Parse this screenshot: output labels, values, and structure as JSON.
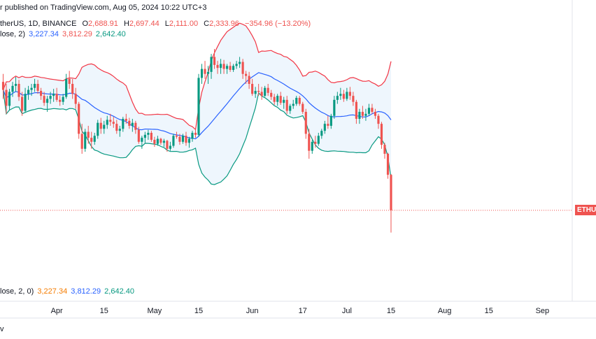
{
  "header": {
    "published": "r published on TradingView.com, Aug 05, 2024 10:22 UTC+3"
  },
  "legend": {
    "symbol": "therUS, 1D, BINANCE",
    "o_label": "O",
    "o_value": "2,688.91",
    "h_label": "H",
    "h_value": "2,697.44",
    "l_label": "L",
    "l_value": "2,111.00",
    "c_label": "C",
    "c_value": "2,333.96",
    "change": "−354.96 (−13.20%)"
  },
  "indicator": {
    "name": "lose, 2)",
    "basis": "3,227.34",
    "upper": "3,812.29",
    "lower": "2,642.40"
  },
  "pane2": {
    "name": "lose, 2, 0)",
    "basis": "3,227.34",
    "upper": "3,812.29",
    "lower": "2,642.40"
  },
  "price_tag": "ETHUS",
  "bottom_label": "v",
  "colors": {
    "up": "#089981",
    "down": "#ef5350",
    "basis": "#2962ff",
    "upper": "#f23645",
    "lower": "#089981",
    "fill": "#e3f0fb",
    "price_line": "#ef5350"
  },
  "chart_data": {
    "type": "candlestick",
    "x_labels": [
      {
        "date": "2024-03-31",
        "label": "Apr"
      },
      {
        "date": "2024-04-15",
        "label": "15"
      },
      {
        "date": "2024-05-01",
        "label": "May"
      },
      {
        "date": "2024-05-15",
        "label": "15"
      },
      {
        "date": "2024-06-01",
        "label": "Jun"
      },
      {
        "date": "2024-06-17",
        "label": "17"
      },
      {
        "date": "2024-07-01",
        "label": "Jul"
      },
      {
        "date": "2024-07-15",
        "label": "15"
      },
      {
        "date": "2024-08-01",
        "label": "Aug"
      },
      {
        "date": "2024-08-15",
        "label": "15"
      },
      {
        "date": "2024-09-01",
        "label": "Sep"
      }
    ],
    "x_range": [
      "2024-03-13",
      "2024-09-18"
    ],
    "ylim": [
      1500,
      4300
    ],
    "start_date": "2024-03-14",
    "candles": [
      [
        3620,
        3700,
        3450,
        3540
      ],
      [
        3540,
        3600,
        3300,
        3380
      ],
      [
        3380,
        3550,
        3340,
        3520
      ],
      [
        3520,
        3620,
        3470,
        3580
      ],
      [
        3580,
        3670,
        3520,
        3600
      ],
      [
        3600,
        3640,
        3430,
        3470
      ],
      [
        3470,
        3520,
        3280,
        3330
      ],
      [
        3330,
        3560,
        3310,
        3500
      ],
      [
        3500,
        3580,
        3440,
        3540
      ],
      [
        3540,
        3600,
        3480,
        3560
      ],
      [
        3560,
        3650,
        3520,
        3600
      ],
      [
        3600,
        3640,
        3500,
        3530
      ],
      [
        3530,
        3560,
        3440,
        3480
      ],
      [
        3480,
        3520,
        3380,
        3410
      ],
      [
        3410,
        3480,
        3320,
        3450
      ],
      [
        3450,
        3520,
        3400,
        3480
      ],
      [
        3480,
        3550,
        3420,
        3500
      ],
      [
        3500,
        3560,
        3420,
        3440
      ],
      [
        3440,
        3480,
        3380,
        3420
      ],
      [
        3420,
        3500,
        3390,
        3470
      ],
      [
        3470,
        3700,
        3450,
        3650
      ],
      [
        3650,
        3730,
        3550,
        3600
      ],
      [
        3600,
        3650,
        3450,
        3500
      ],
      [
        3500,
        3560,
        3350,
        3400
      ],
      [
        3400,
        3420,
        3050,
        3100
      ],
      [
        3100,
        3200,
        2900,
        2950
      ],
      [
        2950,
        3150,
        2920,
        3120
      ],
      [
        3120,
        3180,
        3000,
        3060
      ],
      [
        3060,
        3120,
        2950,
        3020
      ],
      [
        3020,
        3110,
        2990,
        3080
      ],
      [
        3080,
        3240,
        3050,
        3210
      ],
      [
        3210,
        3260,
        3100,
        3150
      ],
      [
        3150,
        3230,
        3100,
        3190
      ],
      [
        3190,
        3280,
        3150,
        3240
      ],
      [
        3240,
        3300,
        3180,
        3220
      ],
      [
        3220,
        3270,
        3160,
        3200
      ],
      [
        3200,
        3240,
        3100,
        3130
      ],
      [
        3130,
        3180,
        3070,
        3150
      ],
      [
        3150,
        3270,
        3120,
        3250
      ],
      [
        3250,
        3300,
        3200,
        3230
      ],
      [
        3230,
        3260,
        3150,
        3180
      ],
      [
        3180,
        3250,
        3120,
        3210
      ],
      [
        3210,
        3230,
        3100,
        3140
      ],
      [
        3140,
        3170,
        3000,
        3020
      ],
      [
        3020,
        3080,
        2950,
        3060
      ],
      [
        3060,
        3120,
        3010,
        3090
      ],
      [
        3090,
        3140,
        3040,
        3110
      ],
      [
        3110,
        3130,
        3020,
        3040
      ],
      [
        3040,
        3070,
        2970,
        3000
      ],
      [
        3000,
        3080,
        2980,
        3050
      ],
      [
        3050,
        3060,
        2990,
        3010
      ],
      [
        3010,
        3050,
        2970,
        3030
      ],
      [
        3030,
        3040,
        2920,
        2950
      ],
      [
        2950,
        3020,
        2930,
        2980
      ],
      [
        2980,
        3100,
        2960,
        3080
      ],
      [
        3080,
        3120,
        3050,
        3070
      ],
      [
        3070,
        3100,
        2990,
        3020
      ],
      [
        3020,
        3100,
        3000,
        3080
      ],
      [
        3080,
        3120,
        2980,
        3010
      ],
      [
        3010,
        3070,
        2960,
        3050
      ],
      [
        3050,
        3130,
        3020,
        3110
      ],
      [
        3110,
        3150,
        3060,
        3090
      ],
      [
        3090,
        3700,
        3070,
        3660
      ],
      [
        3660,
        3800,
        3600,
        3750
      ],
      [
        3750,
        3830,
        3650,
        3700
      ],
      [
        3700,
        3780,
        3600,
        3720
      ],
      [
        3720,
        3900,
        3650,
        3870
      ],
      [
        3870,
        3950,
        3750,
        3790
      ],
      [
        3790,
        3830,
        3700,
        3760
      ],
      [
        3760,
        3850,
        3700,
        3800
      ],
      [
        3800,
        3840,
        3700,
        3750
      ],
      [
        3750,
        3800,
        3700,
        3780
      ],
      [
        3780,
        3820,
        3720,
        3740
      ],
      [
        3740,
        3800,
        3720,
        3780
      ],
      [
        3780,
        3830,
        3750,
        3800
      ],
      [
        3800,
        3870,
        3760,
        3820
      ],
      [
        3820,
        3850,
        3650,
        3700
      ],
      [
        3700,
        3730,
        3600,
        3680
      ],
      [
        3680,
        3720,
        3550,
        3600
      ],
      [
        3600,
        3650,
        3480,
        3500
      ],
      [
        3500,
        3570,
        3460,
        3530
      ],
      [
        3530,
        3600,
        3480,
        3520
      ],
      [
        3520,
        3570,
        3440,
        3480
      ],
      [
        3480,
        3580,
        3470,
        3560
      ],
      [
        3560,
        3600,
        3480,
        3510
      ],
      [
        3510,
        3540,
        3440,
        3470
      ],
      [
        3470,
        3500,
        3390,
        3420
      ],
      [
        3420,
        3500,
        3380,
        3480
      ],
      [
        3480,
        3520,
        3390,
        3410
      ],
      [
        3410,
        3470,
        3350,
        3440
      ],
      [
        3440,
        3480,
        3300,
        3330
      ],
      [
        3330,
        3400,
        3300,
        3380
      ],
      [
        3380,
        3440,
        3350,
        3400
      ],
      [
        3400,
        3480,
        3380,
        3460
      ],
      [
        3460,
        3480,
        3380,
        3400
      ],
      [
        3400,
        3420,
        3300,
        3320
      ],
      [
        3320,
        3350,
        3050,
        3100
      ],
      [
        3100,
        3150,
        2850,
        2930
      ],
      [
        2930,
        3040,
        2900,
        3020
      ],
      [
        3020,
        3080,
        2960,
        3000
      ],
      [
        3000,
        3110,
        2980,
        3080
      ],
      [
        3080,
        3150,
        3050,
        3130
      ],
      [
        3130,
        3230,
        3100,
        3200
      ],
      [
        3200,
        3280,
        3150,
        3180
      ],
      [
        3180,
        3300,
        3150,
        3280
      ],
      [
        3280,
        3480,
        3250,
        3440
      ],
      [
        3440,
        3520,
        3400,
        3480
      ],
      [
        3480,
        3560,
        3440,
        3500
      ],
      [
        3500,
        3540,
        3420,
        3450
      ],
      [
        3450,
        3560,
        3430,
        3520
      ],
      [
        3520,
        3570,
        3440,
        3480
      ],
      [
        3480,
        3520,
        3380,
        3420
      ],
      [
        3420,
        3440,
        3200,
        3250
      ],
      [
        3250,
        3350,
        3200,
        3320
      ],
      [
        3320,
        3380,
        3250,
        3280
      ],
      [
        3280,
        3350,
        3230,
        3300
      ],
      [
        3300,
        3400,
        3280,
        3360
      ],
      [
        3360,
        3400,
        3300,
        3320
      ],
      [
        3320,
        3350,
        3250,
        3280
      ],
      [
        3280,
        3300,
        3150,
        3200
      ],
      [
        3200,
        3220,
        2950,
        2990
      ],
      [
        2990,
        3010,
        2850,
        2900
      ],
      [
        2900,
        2910,
        2650,
        2690
      ],
      [
        2688.91,
        2697.44,
        2111,
        2333.96
      ]
    ]
  }
}
